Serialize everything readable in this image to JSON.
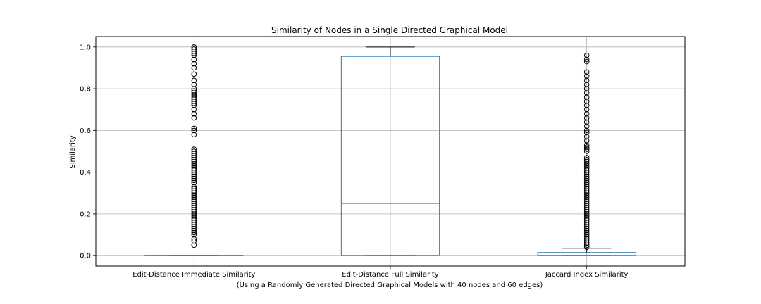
{
  "chart_data": {
    "type": "box",
    "title": "Similarity of Nodes in a Single Directed Graphical Model",
    "xlabel": "(Using a Randomly Generated Directed Graphical Models with 40 nodes and 60 edges)",
    "ylabel": "Similarity",
    "ylim": [
      -0.05,
      1.05
    ],
    "yticks": [
      0.0,
      0.2,
      0.4,
      0.6,
      0.8,
      1.0
    ],
    "ytick_labels": [
      "0.0",
      "0.2",
      "0.4",
      "0.6",
      "0.8",
      "1.0"
    ],
    "grid": true,
    "categories": [
      "Edit-Distance Immediate Similarity",
      "Edit-Distance Full Similarity",
      "Jaccard Index Similarity"
    ],
    "boxes": [
      {
        "name": "Edit-Distance Immediate Similarity",
        "whisker_low": 0.0,
        "q1": 0.0,
        "median": 0.0,
        "q3": 0.0,
        "whisker_high": 0.0,
        "outliers": [
          0.05,
          0.07,
          0.08,
          0.1,
          0.11,
          0.12,
          0.13,
          0.14,
          0.15,
          0.16,
          0.17,
          0.18,
          0.19,
          0.2,
          0.21,
          0.22,
          0.23,
          0.24,
          0.25,
          0.26,
          0.27,
          0.28,
          0.29,
          0.3,
          0.31,
          0.32,
          0.33,
          0.35,
          0.36,
          0.37,
          0.38,
          0.39,
          0.4,
          0.41,
          0.42,
          0.43,
          0.44,
          0.45,
          0.46,
          0.47,
          0.48,
          0.49,
          0.5,
          0.51,
          0.58,
          0.6,
          0.61,
          0.66,
          0.68,
          0.7,
          0.72,
          0.73,
          0.74,
          0.75,
          0.76,
          0.77,
          0.78,
          0.79,
          0.8,
          0.82,
          0.84,
          0.87,
          0.9,
          0.92,
          0.94,
          0.96,
          0.97,
          0.98,
          0.99,
          1.0
        ]
      },
      {
        "name": "Edit-Distance Full Similarity",
        "whisker_low": 0.0,
        "q1": 0.0,
        "median": 0.25,
        "q3": 0.955,
        "whisker_high": 1.0,
        "outliers": []
      },
      {
        "name": "Jaccard Index Similarity",
        "whisker_low": 0.0,
        "q1": 0.0,
        "median": 0.0,
        "q3": 0.015,
        "whisker_high": 0.035,
        "outliers": [
          0.04,
          0.05,
          0.06,
          0.07,
          0.08,
          0.09,
          0.1,
          0.11,
          0.12,
          0.13,
          0.14,
          0.15,
          0.16,
          0.17,
          0.18,
          0.19,
          0.2,
          0.21,
          0.22,
          0.23,
          0.24,
          0.25,
          0.26,
          0.27,
          0.28,
          0.29,
          0.3,
          0.31,
          0.32,
          0.33,
          0.34,
          0.35,
          0.36,
          0.37,
          0.38,
          0.39,
          0.4,
          0.41,
          0.42,
          0.43,
          0.44,
          0.45,
          0.46,
          0.47,
          0.5,
          0.51,
          0.52,
          0.53,
          0.55,
          0.57,
          0.59,
          0.6,
          0.62,
          0.64,
          0.66,
          0.68,
          0.7,
          0.72,
          0.74,
          0.76,
          0.78,
          0.8,
          0.82,
          0.84,
          0.86,
          0.88,
          0.93,
          0.94,
          0.96
        ]
      }
    ],
    "colors": {
      "box": "#1f77b4",
      "median": "#2ca02c",
      "whisker": "#000000",
      "grid": "#b0b0b0"
    }
  }
}
